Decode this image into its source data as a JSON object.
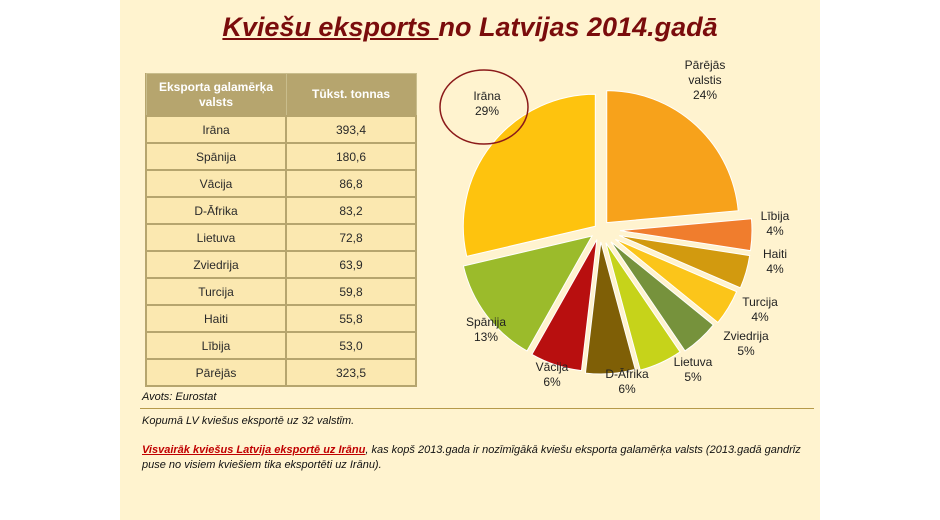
{
  "title": {
    "underlined": "Kviešu eksports ",
    "rest": "no Latvijas 2014.gadā"
  },
  "table": {
    "headers": {
      "country": "Eksporta galamērķa valsts",
      "value": "Tūkst. tonnas"
    },
    "rows": [
      {
        "country": "Irāna",
        "value": "393,4"
      },
      {
        "country": "Spānija",
        "value": "180,6"
      },
      {
        "country": "Vācija",
        "value": "86,8"
      },
      {
        "country": "D-Āfrika",
        "value": "83,2"
      },
      {
        "country": "Lietuva",
        "value": "72,8"
      },
      {
        "country": "Zviedrija",
        "value": "63,9"
      },
      {
        "country": "Turcija",
        "value": "59,8"
      },
      {
        "country": "Haiti",
        "value": "55,8"
      },
      {
        "country": "Lībija",
        "value": "53,0"
      },
      {
        "country": "Pārējās",
        "value": "323,5"
      }
    ]
  },
  "source": "Avots: Eurostat",
  "notes": {
    "line1": "Kopumā LV kviešus eksportē uz 32 valstīm.",
    "highlight": "Visvairāk kviešus Latvija eksportē uz Irānu",
    "rest": ", kas kopš 2013.gada ir nozīmīgākā kviešu eksporta galamērķa valsts (2013.gadā gandrīz puse no visiem kviešiem tika eksportēti uz Irānu)."
  },
  "chart_data": {
    "type": "pie",
    "slices": [
      {
        "label": "Pārējās valstis",
        "pct": "24%",
        "value": 323.5,
        "color": "#f7a21b"
      },
      {
        "label": "Lībija",
        "pct": "4%",
        "value": 53.0,
        "color": "#f07d2d"
      },
      {
        "label": "Haiti",
        "pct": "4%",
        "value": 55.8,
        "color": "#d29a0f"
      },
      {
        "label": "Turcija",
        "pct": "4%",
        "value": 59.8,
        "color": "#fbc51a"
      },
      {
        "label": "Zviedrija",
        "pct": "5%",
        "value": 63.9,
        "color": "#76923c"
      },
      {
        "label": "Lietuva",
        "pct": "5%",
        "value": 72.8,
        "color": "#c6d31a"
      },
      {
        "label": "D-Āfrika",
        "pct": "6%",
        "value": 83.2,
        "color": "#7f5f06"
      },
      {
        "label": "Vācija",
        "pct": "6%",
        "value": 86.8,
        "color": "#b80f0f"
      },
      {
        "label": "Spānija",
        "pct": "13%",
        "value": 180.6,
        "color": "#9bbb2b"
      },
      {
        "label": "Irāna",
        "pct": "29%",
        "value": 393.4,
        "color": "#fec30e"
      }
    ],
    "highlighted": "Irāna"
  }
}
